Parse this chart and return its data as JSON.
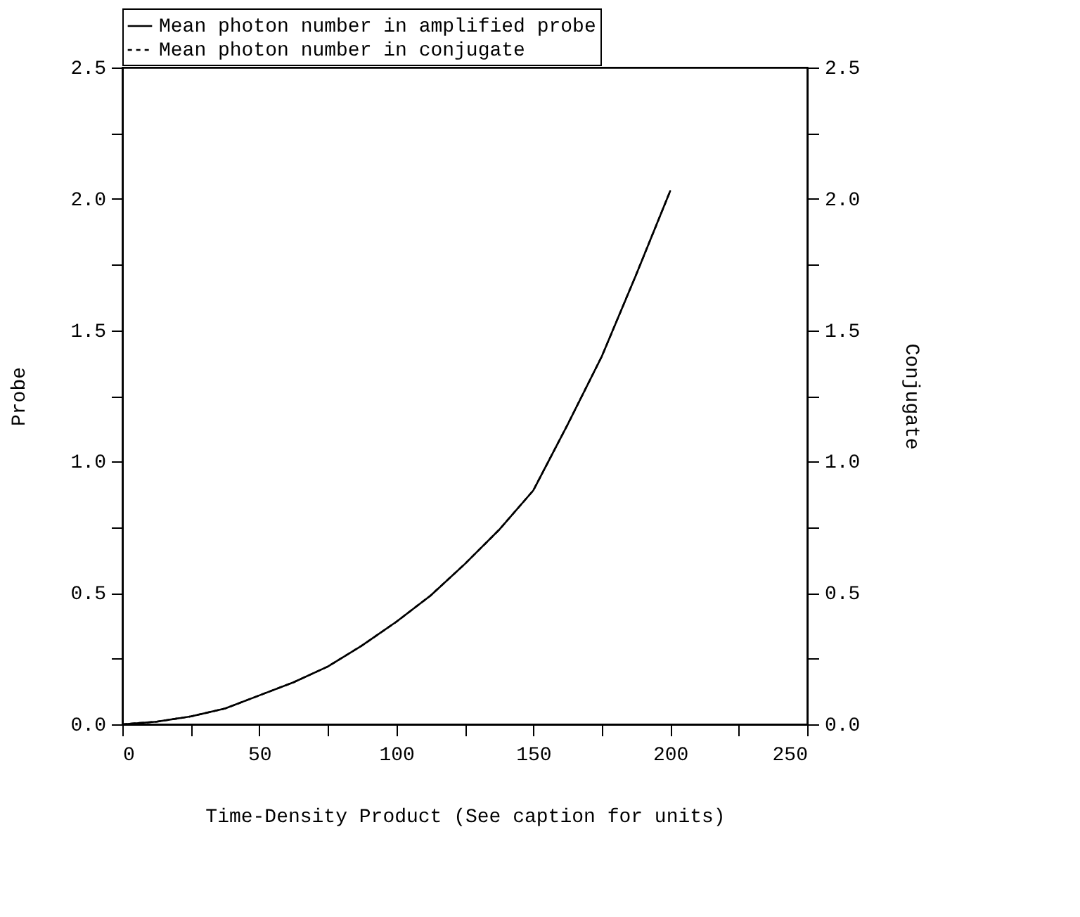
{
  "chart_data": {
    "type": "line",
    "xlabel": "Time-Density Product (See caption for units)",
    "ylabel": "Probe",
    "y2label": "Conjugate",
    "x": [
      0,
      12.5,
      25,
      37.5,
      50,
      62.5,
      75,
      87.5,
      100,
      112.5,
      125,
      137.5,
      150,
      162.5,
      175,
      187.5,
      200
    ],
    "series": [
      {
        "name": "Mean photon number in amplified probe",
        "color": "#000000",
        "line_style": "solid",
        "values": [
          0.0,
          0.01,
          0.03,
          0.06,
          0.11,
          0.16,
          0.22,
          0.3,
          0.39,
          0.49,
          0.61,
          0.74,
          0.89,
          1.14,
          1.4,
          1.71,
          2.03
        ]
      },
      {
        "name": "Mean photon number in conjugate",
        "color": "#000000",
        "line_style": "dashed",
        "axis": "y2",
        "values": [
          0.0,
          0.01,
          0.03,
          0.06,
          0.11,
          0.16,
          0.22,
          0.3,
          0.39,
          0.49,
          0.61,
          0.74,
          0.89,
          1.14,
          1.4,
          1.71,
          2.03
        ]
      }
    ],
    "xlim": [
      0,
      250
    ],
    "xticks": [
      0,
      {
        "value": 25,
        "label": null
      },
      50,
      {
        "value": 75,
        "label": null
      },
      100,
      {
        "value": 125,
        "label": null
      },
      150,
      {
        "value": 175,
        "label": null
      },
      200,
      {
        "value": 225,
        "label": null
      },
      250
    ],
    "ylim": [
      0,
      2.5
    ],
    "yticks": [
      {
        "value": 0,
        "label": "0.0"
      },
      {
        "value": 0.25,
        "label": null
      },
      {
        "value": 0.5,
        "label": "0.5"
      },
      {
        "value": 0.75,
        "label": null
      },
      {
        "value": 1,
        "label": "1.0"
      },
      {
        "value": 1.25,
        "label": null
      },
      {
        "value": 1.5,
        "label": "1.5"
      },
      {
        "value": 1.75,
        "label": null
      },
      {
        "value": 2,
        "label": "2.0"
      },
      {
        "value": 2.25,
        "label": null
      },
      {
        "value": 2.5,
        "label": "2.5"
      }
    ],
    "y2lim": [
      0,
      2.5
    ],
    "y2ticks": [
      {
        "value": 0,
        "label": "0.0"
      },
      {
        "value": 0.25,
        "label": null
      },
      {
        "value": 0.5,
        "label": "0.5"
      },
      {
        "value": 0.75,
        "label": null
      },
      {
        "value": 1,
        "label": "1.0"
      },
      {
        "value": 1.25,
        "label": null
      },
      {
        "value": 1.5,
        "label": "1.5"
      },
      {
        "value": 1.75,
        "label": null
      },
      {
        "value": 2,
        "label": "2.0"
      },
      {
        "value": 2.25,
        "label": null
      },
      {
        "value": 2.5,
        "label": "2.5"
      }
    ],
    "legend": "top",
    "grid": false,
    "marker": "none"
  }
}
